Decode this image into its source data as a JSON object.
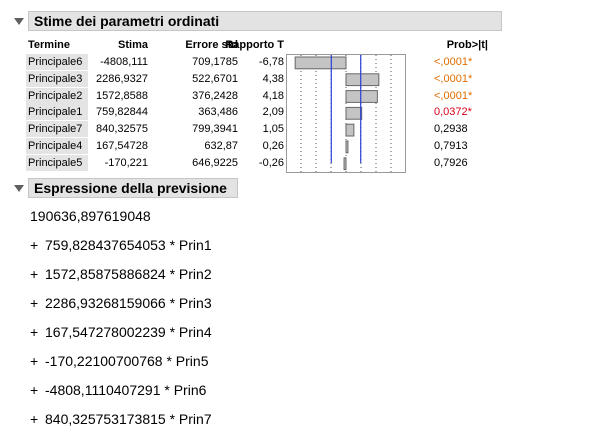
{
  "sections": {
    "params_title": "Stime dei parametri ordinati",
    "prediction_title": "Espressione della previsione"
  },
  "table": {
    "headers": {
      "term": "Termine",
      "estimate": "Stima",
      "std_error": "Errore std",
      "t_ratio": "Rapporto T",
      "prob": "Prob>|t|"
    },
    "rows": [
      {
        "term": "Principale6",
        "estimate": "-4808,111",
        "std_error": "709,1785",
        "t_ratio": "-6,78",
        "t_value": -6.78,
        "prob": "<,0001*",
        "prob_color": "#e06d00"
      },
      {
        "term": "Principale3",
        "estimate": "2286,9327",
        "std_error": "522,6701",
        "t_ratio": "4,38",
        "t_value": 4.38,
        "prob": "<,0001*",
        "prob_color": "#e06d00"
      },
      {
        "term": "Principale2",
        "estimate": "1572,8588",
        "std_error": "376,2428",
        "t_ratio": "4,18",
        "t_value": 4.18,
        "prob": "<,0001*",
        "prob_color": "#e06d00"
      },
      {
        "term": "Principale1",
        "estimate": "759,82844",
        "std_error": "363,486",
        "t_ratio": "2,09",
        "t_value": 2.09,
        "prob": "0,0372*",
        "prob_color": "#d9001b"
      },
      {
        "term": "Principale7",
        "estimate": "840,32575",
        "std_error": "799,3941",
        "t_ratio": "1,05",
        "t_value": 1.05,
        "prob": "0,2938",
        "prob_color": "#000000"
      },
      {
        "term": "Principale4",
        "estimate": "167,54728",
        "std_error": "632,87",
        "t_ratio": "0,26",
        "t_value": 0.26,
        "prob": "0,7913",
        "prob_color": "#000000"
      },
      {
        "term": "Principale5",
        "estimate": "-170,221",
        "std_error": "646,9225",
        "t_ratio": "-0,26",
        "t_value": -0.26,
        "prob": "0,7926",
        "prob_color": "#000000"
      }
    ]
  },
  "chart_data": {
    "type": "bar",
    "orientation": "horizontal",
    "categories": [
      "Principale6",
      "Principale3",
      "Principale2",
      "Principale1",
      "Principale7",
      "Principale4",
      "Principale5"
    ],
    "values": [
      -6.78,
      4.38,
      4.18,
      2.09,
      1.05,
      0.26,
      -0.26
    ],
    "xlim": [
      -8,
      8
    ],
    "reference_lines": [
      -1.96,
      1.96
    ],
    "reference_line_color": "#2a3fd6",
    "bar_color": "#c4c4c4",
    "grid": true
  },
  "expression": {
    "intercept": "190636,897619048",
    "terms": [
      {
        "op": "+",
        "coef": "759,828437654053",
        "var": "Prin1"
      },
      {
        "op": "+",
        "coef": "1572,85875886824",
        "var": "Prin2"
      },
      {
        "op": "+",
        "coef": "2286,93268159066",
        "var": "Prin3"
      },
      {
        "op": "+",
        "coef": "167,547278002239",
        "var": "Prin4"
      },
      {
        "op": "+",
        "coef": "-170,22100700768",
        "var": "Prin5"
      },
      {
        "op": "+",
        "coef": "-4808,1110407291",
        "var": "Prin6"
      },
      {
        "op": "+",
        "coef": "840,325753173815",
        "var": "Prin7"
      }
    ]
  }
}
